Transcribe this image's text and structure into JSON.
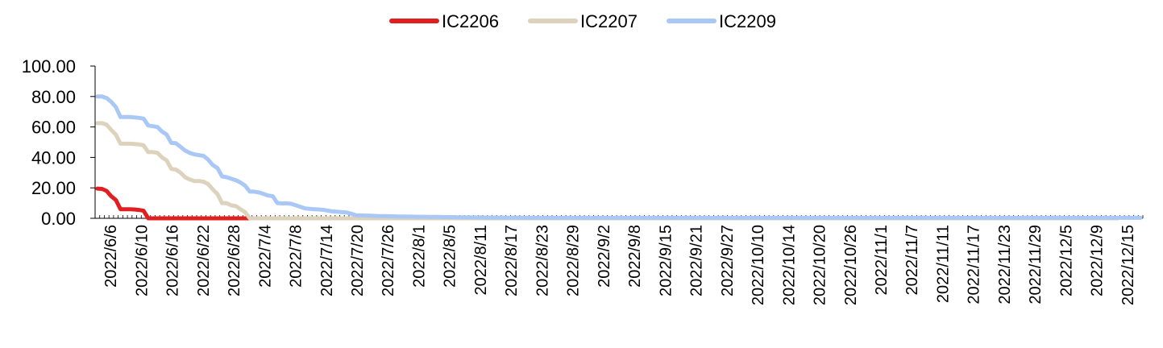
{
  "chart_data": {
    "type": "line",
    "title": "",
    "xlabel": "",
    "ylabel": "",
    "ylim": [
      0,
      100
    ],
    "y_tick_labels": [
      "0.00",
      "20.00",
      "40.00",
      "60.00",
      "80.00",
      "100.00"
    ],
    "x_tick_labels": [
      "2022/6/6",
      "2022/6/10",
      "2022/6/16",
      "2022/6/22",
      "2022/6/28",
      "2022/7/4",
      "2022/7/8",
      "2022/7/14",
      "2022/7/20",
      "2022/7/26",
      "2022/8/1",
      "2022/8/5",
      "2022/8/11",
      "2022/8/17",
      "2022/8/23",
      "2022/8/29",
      "2022/9/2",
      "2022/9/8",
      "2022/9/15",
      "2022/9/21",
      "2022/9/27",
      "2022/10/10",
      "2022/10/14",
      "2022/10/20",
      "2022/10/26",
      "2022/11/1",
      "2022/11/7",
      "2022/11/11",
      "2022/11/17",
      "2022/11/23",
      "2022/11/29",
      "2022/12/5",
      "2022/12/9",
      "2022/12/15"
    ],
    "legend_position": "top-center",
    "grid": false,
    "series": [
      {
        "name": "IC2206",
        "color": "#e02020",
        "values": [
          19.5,
          19.3,
          18,
          14.5,
          12,
          6,
          6,
          6,
          5.8,
          5.5,
          5,
          0,
          0,
          0,
          0,
          0,
          0,
          0,
          0,
          0,
          0,
          0,
          0,
          0,
          0,
          0,
          0,
          0,
          0,
          0,
          0,
          0,
          0,
          0,
          0,
          0,
          0,
          0,
          0,
          0,
          0,
          0,
          0,
          0,
          0,
          0,
          0,
          0,
          0,
          0
        ]
      },
      {
        "name": "IC2207",
        "color": "#ddd3bd",
        "values": [
          62.5,
          62.5,
          61.5,
          58,
          55,
          49,
          49,
          49,
          48.8,
          48.5,
          48,
          43.5,
          43.5,
          43,
          40,
          38,
          32.5,
          32,
          30,
          27,
          25.5,
          24.5,
          24.5,
          24,
          22.5,
          19,
          16,
          10,
          10,
          8.5,
          8,
          6,
          4,
          0,
          0,
          0,
          0,
          0,
          0,
          0,
          0,
          0,
          0,
          0,
          0,
          0,
          0,
          0,
          0,
          0,
          0,
          0,
          0,
          0,
          0,
          0,
          0,
          0,
          0,
          0,
          0,
          0,
          0,
          0,
          0,
          0,
          0,
          0,
          0,
          0,
          0,
          0,
          0,
          0,
          0,
          0,
          0,
          0,
          0,
          0,
          0,
          0,
          0,
          0,
          0,
          0,
          0,
          0,
          0,
          0,
          0,
          0,
          0,
          0,
          0,
          0,
          0,
          0,
          0,
          0,
          0,
          0,
          0,
          0,
          0,
          0,
          0,
          0,
          0,
          0,
          0,
          0,
          0,
          0,
          0,
          0,
          0,
          0,
          0,
          0,
          0,
          0,
          0,
          0,
          0,
          0,
          0,
          0,
          0,
          0,
          0,
          0,
          0,
          0,
          0,
          0,
          0,
          0,
          0,
          0,
          0,
          0,
          0,
          0,
          0,
          0,
          0,
          0,
          0,
          0,
          0,
          0,
          0,
          0,
          0,
          0,
          0,
          0,
          0,
          0,
          0,
          0,
          0,
          0,
          0,
          0,
          0,
          0,
          0,
          0,
          0,
          0,
          0,
          0,
          0,
          0,
          0,
          0,
          0,
          0,
          0,
          0,
          0,
          0,
          0,
          0,
          0,
          0,
          0,
          0,
          0,
          0,
          0,
          0,
          0,
          0,
          0,
          0,
          0,
          0,
          0,
          0,
          0,
          0,
          0,
          0,
          0,
          0,
          0,
          0,
          0,
          0,
          0,
          0,
          0,
          0,
          0,
          0,
          0,
          0,
          0,
          0
        ]
      },
      {
        "name": "IC2209",
        "color": "#a9c8f5",
        "values": [
          80,
          80,
          79,
          76.5,
          73,
          66.5,
          66.5,
          66.5,
          66.3,
          66,
          65.5,
          61,
          60.5,
          60,
          57,
          55,
          49.5,
          49.3,
          47,
          44.5,
          43,
          42,
          41.5,
          41,
          38.5,
          35,
          33,
          27.5,
          27,
          26,
          25,
          23.5,
          21.5,
          17.5,
          17.5,
          17,
          16,
          15,
          14.5,
          10,
          9.8,
          9.8,
          9.5,
          8.5,
          7.5,
          6.5,
          6.2,
          6,
          5.8,
          5.5,
          5,
          4.5,
          4.3,
          4,
          3.8,
          3,
          2,
          1.9,
          1.8,
          1.7,
          1.6,
          1.5,
          1.5,
          1.4,
          1.3,
          1.2,
          1.2,
          1.1,
          1.1,
          1,
          1,
          1,
          0.9,
          0.9,
          0.9,
          0.8,
          0.8,
          0.8,
          0.7,
          0.7,
          0.7,
          0.6,
          0.6,
          0.6,
          0.5,
          0.5,
          0.5,
          0.5,
          0.5,
          0.4,
          0.4,
          0.4,
          0.4,
          0.4,
          0.3,
          0.3,
          0.3,
          0.3,
          0.3,
          0.3,
          0.3,
          0.3,
          0.3,
          0.3,
          0.3,
          0.3,
          0.3,
          0.3,
          0.3,
          0.3,
          0.3,
          0.3,
          0.3,
          0.3,
          0.3,
          0.3,
          0.3,
          0.3,
          0.3,
          0.3,
          0.3,
          0.3,
          0.3,
          0.3,
          0.3,
          0.3,
          0.3,
          0.3,
          0.3,
          0.3,
          0.3,
          0.3,
          0.3,
          0.3,
          0.3,
          0.3,
          0.3,
          0.3,
          0.3,
          0.3,
          0.3,
          0.3,
          0.3,
          0.3,
          0.3,
          0.3,
          0.3,
          0.3,
          0.3,
          0.3,
          0.3,
          0.3,
          0.3,
          0.3,
          0.3,
          0.3,
          0.3,
          0.3,
          0.3,
          0.3,
          0.3,
          0.3,
          0.3,
          0.3,
          0.3,
          0.3,
          0.3,
          0.3,
          0.3,
          0.3,
          0.3,
          0.3,
          0.3,
          0.3,
          0.3,
          0.3,
          0.3,
          0.3,
          0.3,
          0.3,
          0.3,
          0.3,
          0.3,
          0.3,
          0.3,
          0.3,
          0.3,
          0.3,
          0.3,
          0.3,
          0.3,
          0.3,
          0.3,
          0.3,
          0.3,
          0.3,
          0.3,
          0.3,
          0.3,
          0.3,
          0.3,
          0.3,
          0.3,
          0.3,
          0.3,
          0.3,
          0.3,
          0.3,
          0.3,
          0.3,
          0.3,
          0.3,
          0.3,
          0.3,
          0.3,
          0.3,
          0.3,
          0.3,
          0.3,
          0.3,
          0.3,
          0.3,
          0.3,
          0.3,
          0.3,
          0.3,
          0.3
        ]
      }
    ]
  }
}
